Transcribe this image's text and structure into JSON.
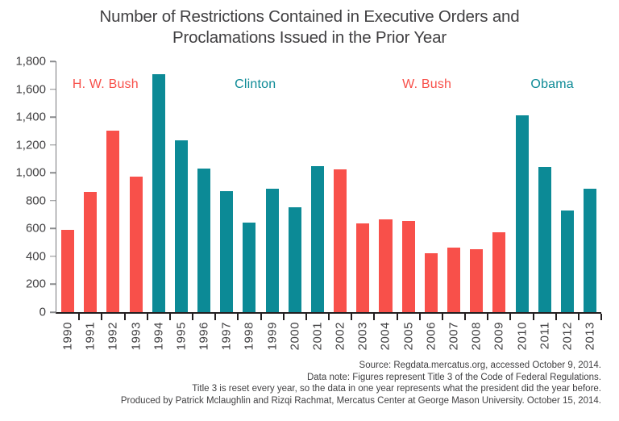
{
  "title": {
    "line1": "Number of Restrictions Contained in Executive Orders and",
    "line2": "Proclamations Issued in the Prior Year"
  },
  "chart_data": {
    "type": "bar",
    "title": "Number of Restrictions Contained in Executive Orders and Proclamations Issued in the Prior Year",
    "categories": [
      "1990",
      "1991",
      "1992",
      "1993",
      "1994",
      "1995",
      "1996",
      "1997",
      "1998",
      "1999",
      "2000",
      "2001",
      "2002",
      "2003",
      "2004",
      "2005",
      "2006",
      "2007",
      "2008",
      "2009",
      "2010",
      "2011",
      "2012",
      "2013"
    ],
    "values": [
      590,
      860,
      1305,
      975,
      1710,
      1230,
      1030,
      870,
      645,
      885,
      755,
      1050,
      1025,
      635,
      665,
      655,
      420,
      465,
      450,
      575,
      1410,
      1040,
      730,
      885
    ],
    "bar_group_index": [
      0,
      0,
      0,
      0,
      1,
      1,
      1,
      1,
      1,
      1,
      1,
      1,
      2,
      2,
      2,
      2,
      2,
      2,
      2,
      2,
      3,
      3,
      3,
      3
    ],
    "groups": [
      {
        "label": "H. W. Bush",
        "color": "#F8504A",
        "start_year": "1990",
        "end_year": "1993",
        "label_x_pct": 9
      },
      {
        "label": "Clinton",
        "color": "#0C8A96",
        "start_year": "1994",
        "end_year": "2001",
        "label_x_pct": 36.5
      },
      {
        "label": "W. Bush",
        "color": "#F8504A",
        "start_year": "2002",
        "end_year": "2009",
        "label_x_pct": 68
      },
      {
        "label": "Obama",
        "color": "#0C8A96",
        "start_year": "2010",
        "end_year": "2013",
        "label_x_pct": 91
      }
    ],
    "xlabel": "",
    "ylabel": "",
    "ylim": [
      0,
      1800
    ],
    "ytick_step": 200,
    "ytick_labels_top_to_bottom": [
      "1,800",
      "1,600",
      "1,400",
      "1,200",
      "1,000",
      "800",
      "600",
      "400",
      "200",
      "0"
    ],
    "grid": false,
    "legend_position": "none"
  },
  "footer": {
    "lines": [
      "Source: Regdata.mercatus.org, accessed October 9, 2014.",
      "Data note: Figures represent Title 3 of the Code of Federal Regulations.",
      "Title 3 is reset every year, so the data in one year represents what the president did the year before.",
      "Produced by Patrick Mclaughlin and Rizqi Rachmat, Mercatus Center at George Mason University. October 15, 2014."
    ]
  },
  "colors": {
    "bush_red": "#F8504A",
    "dem_obama_teal": "#0C8A96",
    "x_axis": "#231f20",
    "y_axis": "#77787b",
    "text": "#414042"
  }
}
